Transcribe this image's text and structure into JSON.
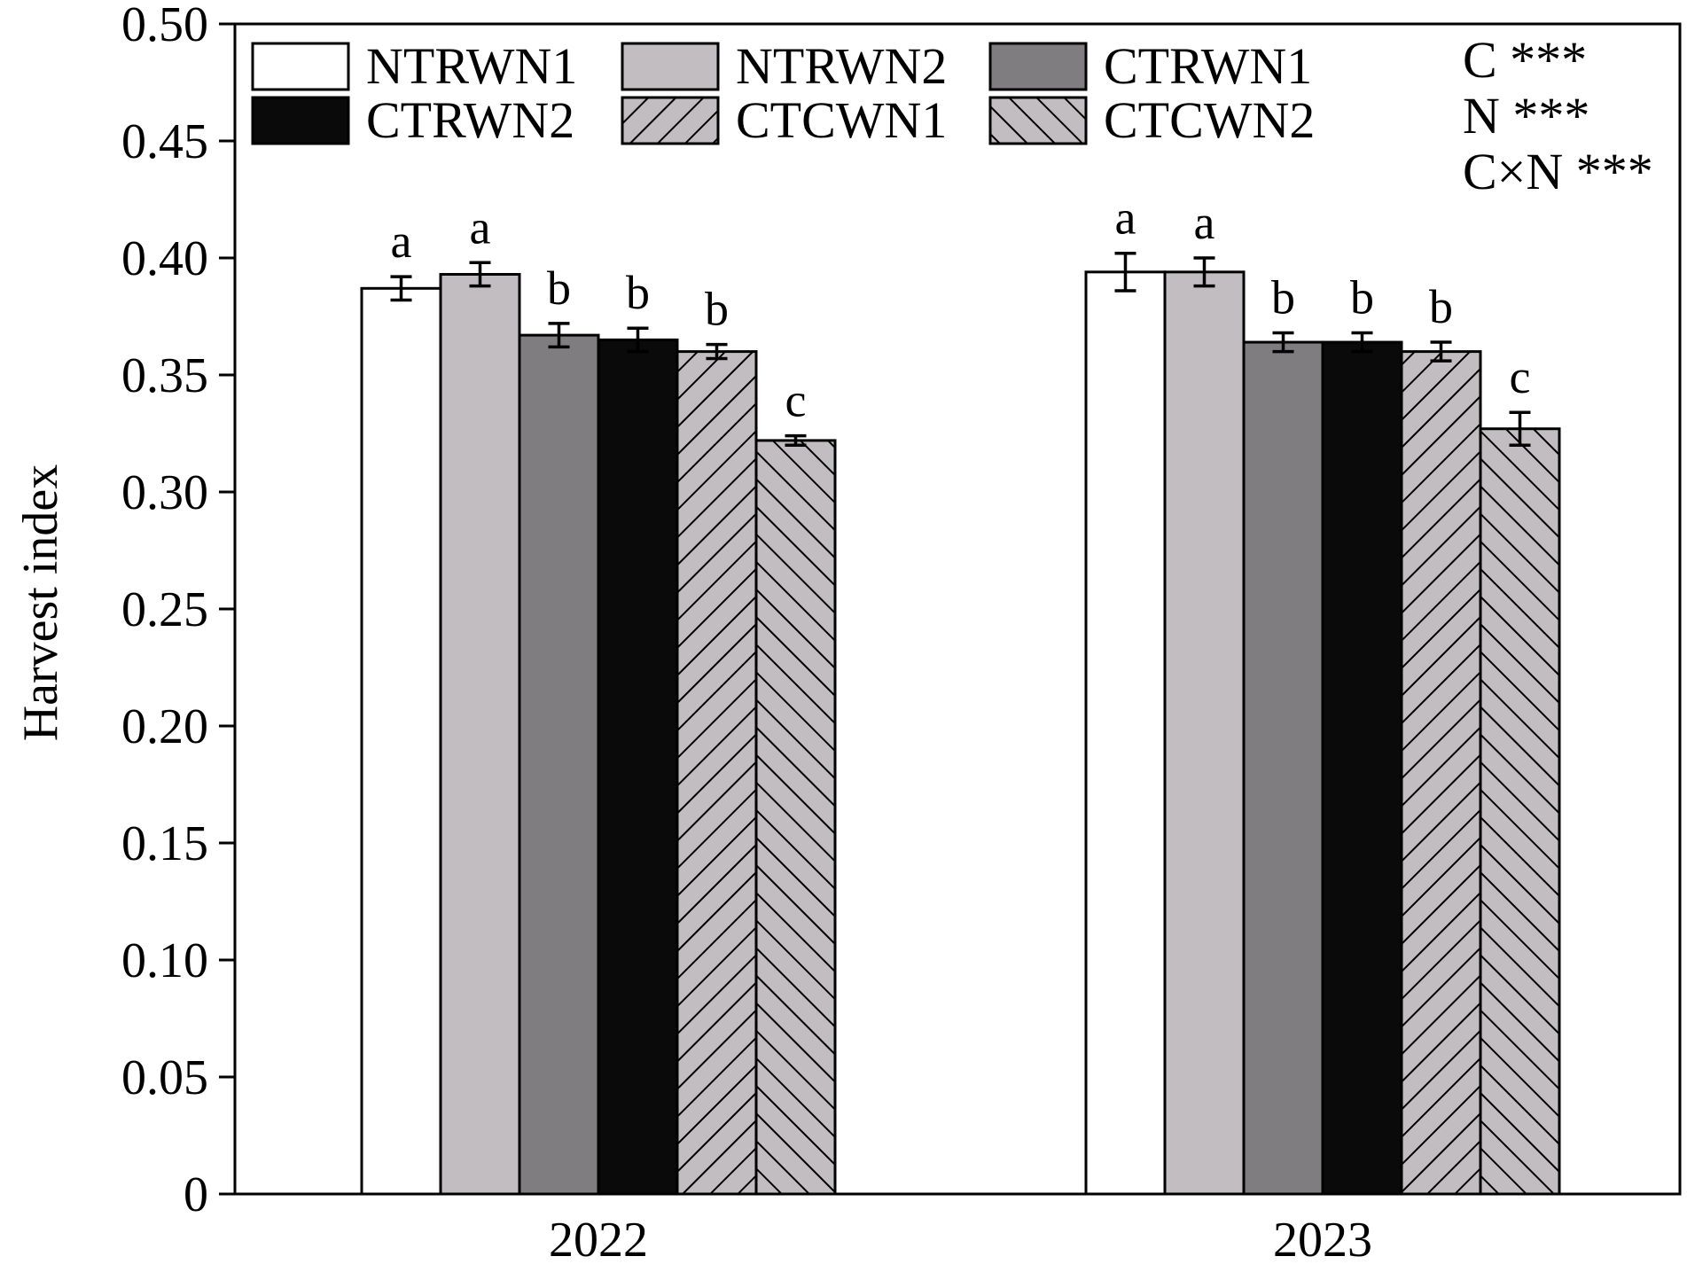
{
  "chart_data": {
    "type": "bar",
    "title": "",
    "xlabel": "",
    "ylabel": "Harvest index",
    "ylim": [
      0,
      0.5
    ],
    "yticks": [
      "0",
      "0.05",
      "0.10",
      "0.15",
      "0.20",
      "0.25",
      "0.30",
      "0.35",
      "0.40",
      "0.45",
      "0.50"
    ],
    "categories": [
      "2022",
      "2023"
    ],
    "grid": false,
    "legend_position": "top-left",
    "series": [
      {
        "name": "NTRWN1",
        "values": [
          0.387,
          0.394
        ],
        "errors": [
          0.005,
          0.008
        ],
        "letters": [
          "a",
          "a"
        ],
        "fill": "#ffffff",
        "pattern": "none"
      },
      {
        "name": "NTRWN2",
        "values": [
          0.393,
          0.394
        ],
        "errors": [
          0.005,
          0.006
        ],
        "letters": [
          "a",
          "a"
        ],
        "fill": "#c2bdc0",
        "pattern": "none"
      },
      {
        "name": "CTRWN1",
        "values": [
          0.367,
          0.364
        ],
        "errors": [
          0.005,
          0.004
        ],
        "letters": [
          "b",
          "b"
        ],
        "fill": "#807d80",
        "pattern": "none"
      },
      {
        "name": "CTRWN2",
        "values": [
          0.365,
          0.364
        ],
        "errors": [
          0.005,
          0.004
        ],
        "letters": [
          "b",
          "b"
        ],
        "fill": "#0a0a0a",
        "pattern": "none"
      },
      {
        "name": "CTCWN1",
        "values": [
          0.36,
          0.36
        ],
        "errors": [
          0.003,
          0.004
        ],
        "letters": [
          "b",
          "b"
        ],
        "fill": "#c2bdc0",
        "pattern": "forward-hatch"
      },
      {
        "name": "CTCWN2",
        "values": [
          0.322,
          0.327
        ],
        "errors": [
          0.002,
          0.007
        ],
        "letters": [
          "c",
          "c"
        ],
        "fill": "#c2bdc0",
        "pattern": "back-hatch"
      }
    ],
    "annotations": [
      "C ***",
      "N ***",
      "C×N ***"
    ]
  }
}
